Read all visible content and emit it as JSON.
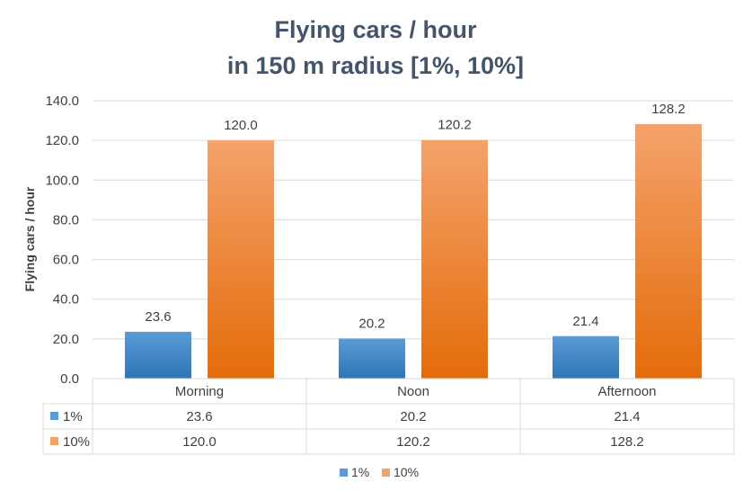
{
  "chart_data": {
    "type": "bar",
    "title_lines": [
      "Flying cars / hour",
      "in 150 m radius [1%, 10%]"
    ],
    "xlabel": "",
    "ylabel": "Flying cars / hour",
    "ylim": [
      0,
      140
    ],
    "yticks": [
      0,
      20,
      40,
      60,
      80,
      100,
      120,
      140
    ],
    "ytick_labels": [
      "0.0",
      "20.0",
      "40.0",
      "60.0",
      "80.0",
      "100.0",
      "120.0",
      "140.0"
    ],
    "grid": true,
    "legend_position": "bottom",
    "categories": [
      "Morning",
      "Noon",
      "Afternoon"
    ],
    "series": [
      {
        "name": "1%",
        "values": [
          23.6,
          20.2,
          21.4
        ],
        "labels": [
          "23.6",
          "20.2",
          "21.4"
        ],
        "color_top": "#5b9bd5",
        "color_bottom": "#2e75b6"
      },
      {
        "name": "10%",
        "values": [
          120.0,
          120.2,
          128.2
        ],
        "labels": [
          "120.0",
          "120.2",
          "128.2"
        ],
        "color_top": "#f4a26b",
        "color_bottom": "#e46c0a"
      }
    ],
    "data_table": true
  }
}
